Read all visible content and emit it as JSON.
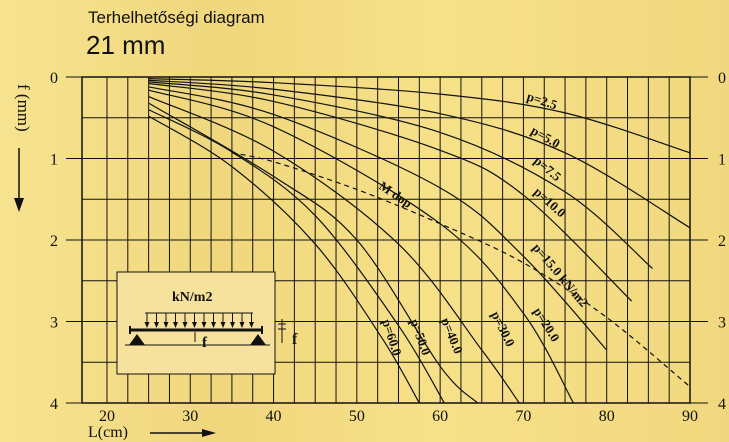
{
  "header": {
    "title": "Terhelhetőségi diagram",
    "subtitle": "21 mm"
  },
  "chart_data": {
    "type": "line",
    "title": "Terhelhetőségi diagram",
    "subtitle": "21 mm",
    "xlabel": "L(cm)",
    "ylabel": "f (mm)",
    "xlim": [
      17,
      90
    ],
    "ylim": [
      0,
      4
    ],
    "x_ticks": [
      20,
      30,
      40,
      50,
      60,
      70,
      80,
      90
    ],
    "y_ticks": [
      0,
      1,
      2,
      3,
      4
    ],
    "y_inverted": true,
    "grid": true,
    "series": [
      {
        "name": "p=2.5",
        "x": [
          25,
          40,
          60,
          75,
          90
        ],
        "y": [
          0.02,
          0.07,
          0.21,
          0.44,
          0.93
        ]
      },
      {
        "name": "p=5.0",
        "x": [
          25,
          40,
          60,
          75,
          90
        ],
        "y": [
          0.04,
          0.15,
          0.45,
          0.93,
          1.85
        ]
      },
      {
        "name": "p=7.5",
        "x": [
          25,
          40,
          60,
          75,
          85.5
        ],
        "y": [
          0.06,
          0.22,
          0.68,
          1.41,
          2.35
        ]
      },
      {
        "name": "p=10.0",
        "x": [
          25,
          40,
          60,
          70,
          83
        ],
        "y": [
          0.08,
          0.3,
          0.9,
          1.45,
          2.75
        ]
      },
      {
        "name": "p=15.0 kN/m2",
        "x": [
          25,
          40,
          60,
          70,
          80
        ],
        "y": [
          0.12,
          0.46,
          1.36,
          2.2,
          3.35
        ]
      },
      {
        "name": "p=20.0",
        "x": [
          25,
          40,
          60,
          70,
          76
        ],
        "y": [
          0.16,
          0.61,
          1.8,
          2.9,
          4.0
        ]
      },
      {
        "name": "p=30.0",
        "x": [
          25,
          40,
          55,
          65,
          69.5
        ],
        "y": [
          0.24,
          0.91,
          2.05,
          3.35,
          4.0
        ]
      },
      {
        "name": "p=40.0",
        "x": [
          25,
          40,
          50,
          60,
          64.5
        ],
        "y": [
          0.32,
          1.22,
          2.0,
          3.55,
          4.0
        ]
      },
      {
        "name": "p=50.0",
        "x": [
          25,
          35,
          45,
          55,
          60.5
        ],
        "y": [
          0.4,
          0.92,
          1.7,
          3.05,
          4.0
        ]
      },
      {
        "name": "p=60.0",
        "x": [
          25,
          35,
          45,
          53,
          57.5
        ],
        "y": [
          0.48,
          1.1,
          2.05,
          3.2,
          4.0
        ]
      },
      {
        "name": "M dop",
        "style": "dashed",
        "x": [
          35,
          40,
          50,
          60,
          70,
          80,
          90
        ],
        "y": [
          0.93,
          1.04,
          1.38,
          1.8,
          2.28,
          2.95,
          3.8
        ]
      }
    ],
    "inset": {
      "load_label": "kN/m2",
      "deflection_label_1": "f",
      "deflection_label_2": "f"
    }
  },
  "colors": {
    "background": "#f3dc82",
    "ink": "#111111"
  }
}
